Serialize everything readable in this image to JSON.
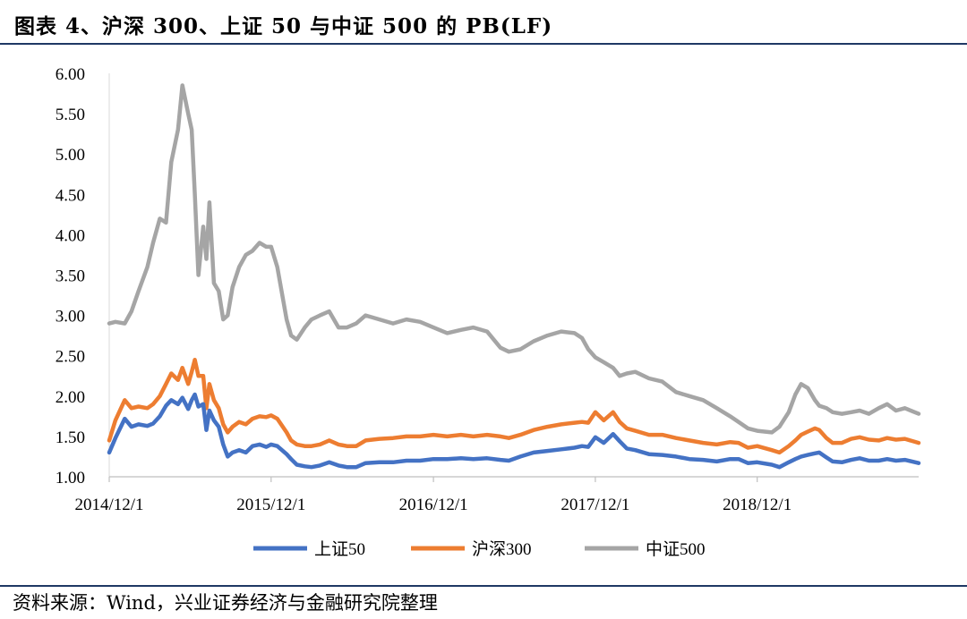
{
  "header": {
    "title": "图表 4、沪深 300、上证 50 与中证 500 的 PB(LF)"
  },
  "footer": {
    "source": "资料来源：Wind，兴业证券经济与金融研究院整理"
  },
  "colors": {
    "sz50": "#4472c4",
    "hs300": "#ed7d31",
    "zz500": "#a5a5a5",
    "rule": "#1f3864"
  },
  "chart_data": {
    "type": "line",
    "title": "",
    "xlabel": "",
    "ylabel": "",
    "ylim": [
      1.0,
      6.0
    ],
    "yticks": [
      "1.00",
      "1.50",
      "2.00",
      "2.50",
      "3.00",
      "3.50",
      "4.00",
      "4.50",
      "5.00",
      "5.50",
      "6.00"
    ],
    "xlim": [
      "2014-12-01",
      "2019-11-30"
    ],
    "xticks": [
      {
        "date": "2014-12-01",
        "label": "2014/12/1"
      },
      {
        "date": "2015-12-01",
        "label": "2015/12/1"
      },
      {
        "date": "2016-12-01",
        "label": "2016/12/1"
      },
      {
        "date": "2017-12-01",
        "label": "2017/12/1"
      },
      {
        "date": "2018-12-01",
        "label": "2018/12/1"
      }
    ],
    "grid": false,
    "legend": "bottom",
    "x": [
      "2014-12-01",
      "2014-12-15",
      "2015-01-05",
      "2015-01-20",
      "2015-02-05",
      "2015-02-25",
      "2015-03-10",
      "2015-03-25",
      "2015-04-08",
      "2015-04-20",
      "2015-05-05",
      "2015-05-15",
      "2015-05-28",
      "2015-06-05",
      "2015-06-12",
      "2015-06-20",
      "2015-07-01",
      "2015-07-08",
      "2015-07-15",
      "2015-07-25",
      "2015-08-05",
      "2015-08-15",
      "2015-08-25",
      "2015-09-05",
      "2015-09-20",
      "2015-10-05",
      "2015-10-20",
      "2015-11-05",
      "2015-11-20",
      "2015-12-01",
      "2015-12-15",
      "2016-01-05",
      "2016-01-15",
      "2016-01-28",
      "2016-02-15",
      "2016-03-01",
      "2016-03-20",
      "2016-04-10",
      "2016-05-01",
      "2016-05-20",
      "2016-06-10",
      "2016-07-01",
      "2016-08-01",
      "2016-09-01",
      "2016-10-01",
      "2016-11-01",
      "2016-12-01",
      "2017-01-01",
      "2017-02-01",
      "2017-03-01",
      "2017-04-01",
      "2017-05-01",
      "2017-05-20",
      "2017-06-15",
      "2017-07-15",
      "2017-08-15",
      "2017-09-15",
      "2017-10-15",
      "2017-11-01",
      "2017-11-15",
      "2017-12-01",
      "2017-12-20",
      "2018-01-10",
      "2018-01-25",
      "2018-02-10",
      "2018-03-01",
      "2018-04-01",
      "2018-05-01",
      "2018-06-01",
      "2018-07-01",
      "2018-08-01",
      "2018-09-01",
      "2018-10-01",
      "2018-10-20",
      "2018-11-10",
      "2018-12-01",
      "2019-01-03",
      "2019-01-20",
      "2019-02-10",
      "2019-02-25",
      "2019-03-10",
      "2019-03-25",
      "2019-04-10",
      "2019-04-20",
      "2019-05-06",
      "2019-05-20",
      "2019-06-10",
      "2019-07-01",
      "2019-07-20",
      "2019-08-10",
      "2019-09-01",
      "2019-09-20",
      "2019-10-10",
      "2019-10-30",
      "2019-11-30"
    ],
    "series": [
      {
        "name": "上证50",
        "key": "sz50",
        "values": [
          1.3,
          1.48,
          1.72,
          1.62,
          1.65,
          1.63,
          1.66,
          1.75,
          1.88,
          1.95,
          1.9,
          1.98,
          1.84,
          1.95,
          2.02,
          1.87,
          1.9,
          1.58,
          1.82,
          1.7,
          1.62,
          1.4,
          1.25,
          1.3,
          1.33,
          1.3,
          1.38,
          1.4,
          1.37,
          1.4,
          1.38,
          1.28,
          1.22,
          1.15,
          1.13,
          1.12,
          1.14,
          1.18,
          1.14,
          1.12,
          1.12,
          1.17,
          1.18,
          1.18,
          1.2,
          1.2,
          1.22,
          1.22,
          1.23,
          1.22,
          1.23,
          1.21,
          1.2,
          1.25,
          1.3,
          1.32,
          1.34,
          1.36,
          1.38,
          1.37,
          1.49,
          1.42,
          1.53,
          1.44,
          1.35,
          1.33,
          1.28,
          1.27,
          1.25,
          1.22,
          1.21,
          1.19,
          1.22,
          1.22,
          1.17,
          1.18,
          1.15,
          1.12,
          1.18,
          1.22,
          1.25,
          1.27,
          1.29,
          1.3,
          1.24,
          1.19,
          1.18,
          1.21,
          1.23,
          1.2,
          1.2,
          1.22,
          1.2,
          1.21,
          1.17
        ]
      },
      {
        "name": "沪深300",
        "key": "hs300",
        "values": [
          1.45,
          1.7,
          1.95,
          1.85,
          1.87,
          1.85,
          1.9,
          2.0,
          2.15,
          2.28,
          2.2,
          2.35,
          2.15,
          2.3,
          2.45,
          2.25,
          2.25,
          1.85,
          2.15,
          1.95,
          1.85,
          1.65,
          1.55,
          1.62,
          1.68,
          1.65,
          1.72,
          1.75,
          1.74,
          1.76,
          1.72,
          1.55,
          1.45,
          1.4,
          1.38,
          1.38,
          1.4,
          1.45,
          1.4,
          1.38,
          1.38,
          1.45,
          1.47,
          1.48,
          1.5,
          1.5,
          1.52,
          1.5,
          1.52,
          1.5,
          1.52,
          1.5,
          1.48,
          1.52,
          1.58,
          1.62,
          1.65,
          1.67,
          1.68,
          1.67,
          1.8,
          1.7,
          1.8,
          1.68,
          1.6,
          1.57,
          1.52,
          1.52,
          1.48,
          1.45,
          1.42,
          1.4,
          1.43,
          1.42,
          1.36,
          1.38,
          1.33,
          1.3,
          1.38,
          1.45,
          1.52,
          1.56,
          1.6,
          1.58,
          1.48,
          1.42,
          1.42,
          1.47,
          1.49,
          1.46,
          1.45,
          1.48,
          1.46,
          1.47,
          1.42
        ]
      },
      {
        "name": "中证500",
        "key": "zz500",
        "values": [
          2.9,
          2.92,
          2.9,
          3.05,
          3.3,
          3.6,
          3.9,
          4.2,
          4.15,
          4.9,
          5.3,
          5.85,
          5.5,
          5.3,
          4.5,
          3.5,
          4.1,
          3.7,
          4.4,
          3.4,
          3.3,
          2.95,
          3.0,
          3.35,
          3.6,
          3.75,
          3.8,
          3.9,
          3.85,
          3.85,
          3.6,
          2.95,
          2.75,
          2.7,
          2.85,
          2.95,
          3.0,
          3.05,
          2.85,
          2.85,
          2.9,
          3.0,
          2.95,
          2.9,
          2.95,
          2.92,
          2.85,
          2.78,
          2.82,
          2.85,
          2.8,
          2.6,
          2.55,
          2.58,
          2.68,
          2.75,
          2.8,
          2.78,
          2.72,
          2.58,
          2.48,
          2.42,
          2.35,
          2.25,
          2.28,
          2.3,
          2.22,
          2.18,
          2.05,
          2.0,
          1.95,
          1.85,
          1.75,
          1.68,
          1.6,
          1.57,
          1.55,
          1.62,
          1.8,
          2.02,
          2.15,
          2.1,
          1.95,
          1.88,
          1.85,
          1.8,
          1.78,
          1.8,
          1.82,
          1.78,
          1.85,
          1.9,
          1.82,
          1.85,
          1.78
        ]
      }
    ]
  }
}
